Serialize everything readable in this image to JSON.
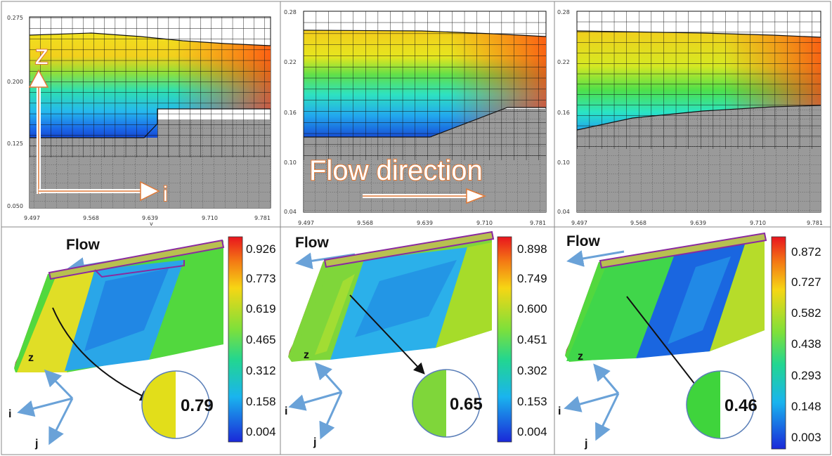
{
  "top_panels": [
    {
      "y_ticks": [
        "0.275",
        "0.200",
        "0.125",
        "0.050"
      ],
      "x_ticks": [
        "9.497",
        "9.568",
        "9.639",
        "9.710",
        "9.781"
      ],
      "x_extra_mark": "v"
    },
    {
      "y_ticks": [
        "0.28",
        "0.22",
        "0.16",
        "0.10",
        "0.04"
      ],
      "x_ticks": [
        "9.497",
        "9.568",
        "9.639",
        "9.710",
        "9.781"
      ]
    },
    {
      "y_ticks": [
        "0.28",
        "0.22",
        "0.16",
        "0.10",
        "0.04"
      ],
      "x_ticks": [
        "9.497",
        "9.568",
        "9.639",
        "9.710",
        "9.781"
      ]
    }
  ],
  "annotations": {
    "z_label": "Z",
    "i_label": "i",
    "flow_direction": "Flow direction"
  },
  "bottom_panels": [
    {
      "flow_label": "Flow",
      "colorbar": [
        "0.926",
        "0.773",
        "0.619",
        "0.465",
        "0.312",
        "0.158",
        "0.004"
      ],
      "bubble_value": "0.79",
      "bubble_color": "#e2de1a",
      "axes": {
        "z": "z",
        "i": "i",
        "j": "j"
      }
    },
    {
      "flow_label": "Flow",
      "colorbar": [
        "0.898",
        "0.749",
        "0.600",
        "0.451",
        "0.302",
        "0.153",
        "0.004"
      ],
      "bubble_value": "0.65",
      "bubble_color": "#7fd63a",
      "axes": {
        "z": "z",
        "i": "i",
        "j": "j"
      }
    },
    {
      "flow_label": "Flow",
      "colorbar": [
        "0.872",
        "0.727",
        "0.582",
        "0.438",
        "0.293",
        "0.148",
        "0.003"
      ],
      "bubble_value": "0.46",
      "bubble_color": "#3fd43c",
      "axes": {
        "z": "z",
        "i": "i",
        "j": "j"
      }
    }
  ],
  "colors": {
    "arrow_orange": "#e07a38",
    "axis_blue": "#6aa2d8",
    "frame_purple": "#8a2aa0",
    "bed_gray": "#9a9a9a"
  },
  "icons": [
    "flow-arrow-icon",
    "coordinate-axes-icon",
    "callout-arrow-icon"
  ]
}
